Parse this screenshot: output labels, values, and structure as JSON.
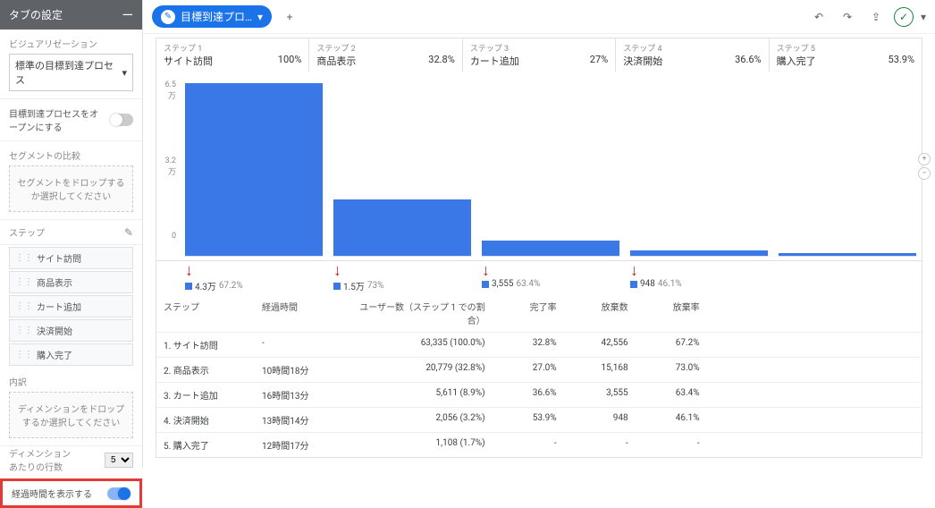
{
  "sidebar": {
    "title": "タブの設定",
    "viz_label": "ビジュアリゼーション",
    "viz_value": "標準の目標到達プロセス",
    "open_label": "目標到達プロセスをオープンにする",
    "seg_compare": "セグメントの比較",
    "seg_drop": "セグメントをドロップするか選択してください",
    "steps_label": "ステップ",
    "steps": [
      "サイト訪問",
      "商品表示",
      "カート追加",
      "決済開始",
      "購入完了"
    ],
    "breakdown_label": "内訳",
    "breakdown_drop": "ディメンションをドロップするか選択してください",
    "rows_label1": "ディメンション",
    "rows_label2": "あたりの行数",
    "rows_value": "5",
    "elapsed_label": "経過時間を表示する"
  },
  "toolbar": {
    "tab_name": "目標到達プロ…",
    "add": "+"
  },
  "funnel": {
    "ymax": 65000,
    "ylabels": [
      "6.5万",
      "3.2万",
      "0"
    ],
    "bar_color": "#3b78e7",
    "arrow_color": "#c5221f",
    "steps": [
      {
        "n": "ステップ 1",
        "name": "サイト訪問",
        "rate": "100%",
        "value": 63335,
        "drop_val": "4.3万",
        "drop_pct": "67.2%"
      },
      {
        "n": "ステップ 2",
        "name": "商品表示",
        "rate": "32.8%",
        "value": 20779,
        "drop_val": "1.5万",
        "drop_pct": "73%"
      },
      {
        "n": "ステップ 3",
        "name": "カート追加",
        "rate": "27%",
        "value": 5611,
        "drop_val": "3,555",
        "drop_pct": "63.4%"
      },
      {
        "n": "ステップ 4",
        "name": "決済開始",
        "rate": "36.6%",
        "value": 2056,
        "drop_val": "948",
        "drop_pct": "46.1%"
      },
      {
        "n": "ステップ 5",
        "name": "購入完了",
        "rate": "53.9%",
        "value": 1108,
        "drop_val": "",
        "drop_pct": ""
      }
    ]
  },
  "table": {
    "headers": [
      "ステップ",
      "経過時間",
      "ユーザー数（ステップ 1 での割合）",
      "完了率",
      "放棄数",
      "放棄率"
    ],
    "rows": [
      [
        "1. サイト訪問",
        "-",
        "63,335 (100.0%)",
        "32.8%",
        "42,556",
        "67.2%"
      ],
      [
        "2. 商品表示",
        "10時間18分",
        "20,779 (32.8%)",
        "27.0%",
        "15,168",
        "73.0%"
      ],
      [
        "3. カート追加",
        "16時間13分",
        "5,611 (8.9%)",
        "36.6%",
        "3,555",
        "63.4%"
      ],
      [
        "4. 決済開始",
        "13時間14分",
        "2,056 (3.2%)",
        "53.9%",
        "948",
        "46.1%"
      ],
      [
        "5. 購入完了",
        "12時間17分",
        "1,108 (1.7%)",
        "-",
        "-",
        "-"
      ]
    ]
  }
}
